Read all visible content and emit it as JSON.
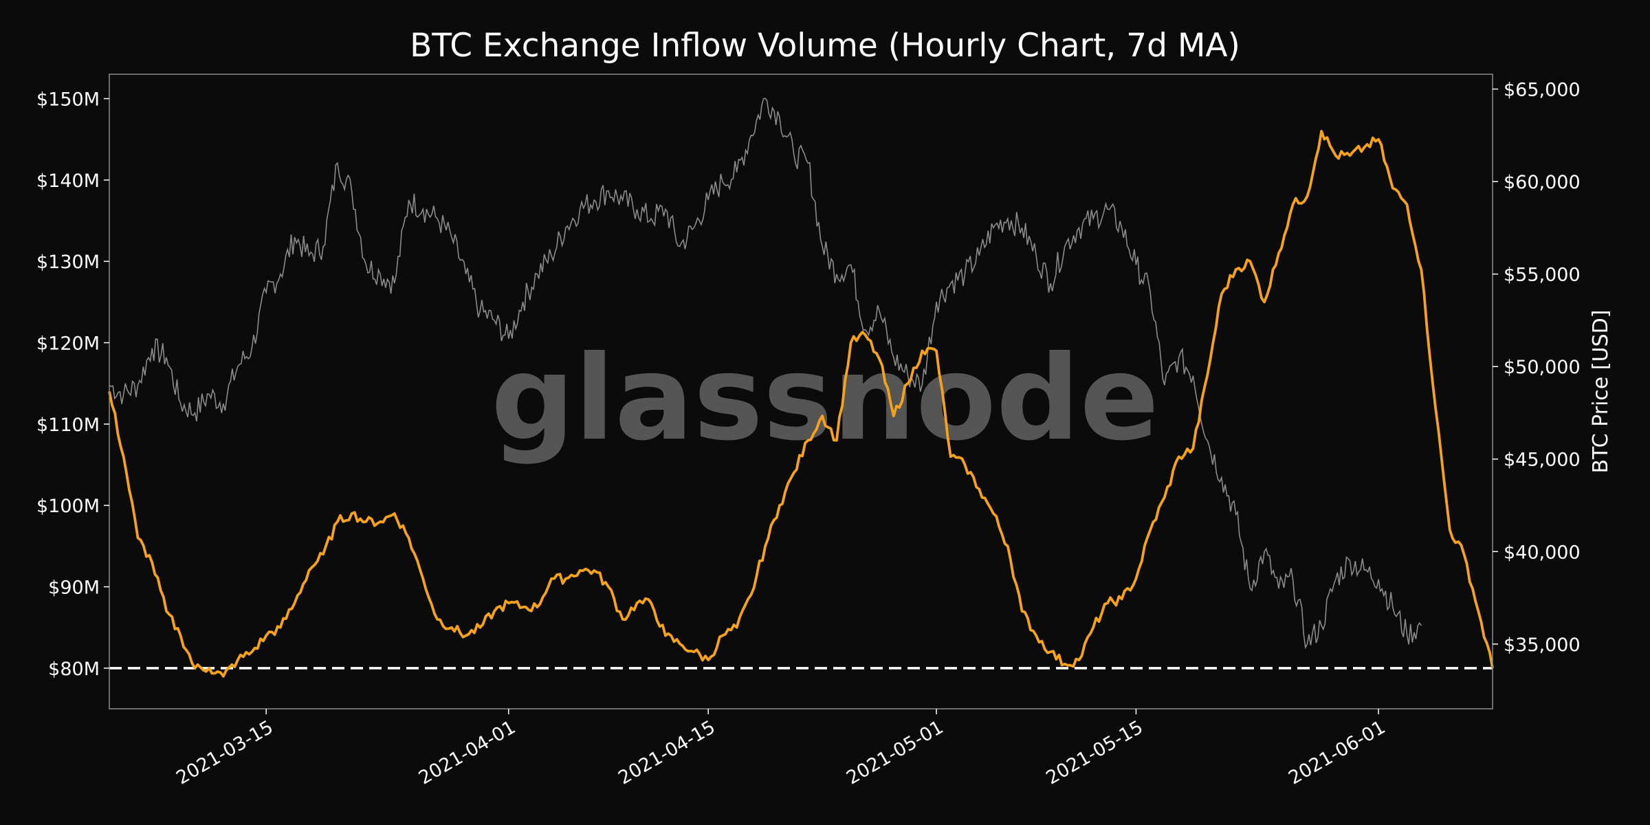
{
  "chart_data": {
    "type": "line",
    "title": "BTC Exchange Inflow Volume (Hourly Chart, 7d MA)",
    "watermark": "glassnode",
    "xlabel": "",
    "ylabel": "",
    "y2label": "BTC Price [USD]",
    "x_range": [
      "2021-03-04",
      "2021-06-09"
    ],
    "ylim": [
      75,
      153
    ],
    "y2lim": [
      31500,
      65800
    ],
    "grid": false,
    "x_ticks": [
      "2021-03-15",
      "2021-04-01",
      "2021-04-15",
      "2021-05-01",
      "2021-05-15",
      "2021-06-01"
    ],
    "y_ticks": [
      {
        "value": 80,
        "label": "$80M"
      },
      {
        "value": 90,
        "label": "$90M"
      },
      {
        "value": 100,
        "label": "$100M"
      },
      {
        "value": 110,
        "label": "$110M"
      },
      {
        "value": 120,
        "label": "$120M"
      },
      {
        "value": 130,
        "label": "$130M"
      },
      {
        "value": 140,
        "label": "$140M"
      },
      {
        "value": 150,
        "label": "$150M"
      }
    ],
    "y2_ticks": [
      {
        "value": 35000,
        "label": "$35,000"
      },
      {
        "value": 40000,
        "label": "$40,000"
      },
      {
        "value": 45000,
        "label": "$45,000"
      },
      {
        "value": 50000,
        "label": "$50,000"
      },
      {
        "value": 55000,
        "label": "$55,000"
      },
      {
        "value": 60000,
        "label": "$60,000"
      },
      {
        "value": 65000,
        "label": "$65,000"
      }
    ],
    "threshold": {
      "value": 80,
      "style": "dashed",
      "color": "#ffffff"
    },
    "colors": {
      "inflow": "#f7a21b",
      "price": "#8a8a8a",
      "background": "#0b0b0b",
      "frame": "#8c8c8c"
    },
    "series": [
      {
        "key": "inflow",
        "axis": "left",
        "points": [
          [
            "2021-03-04",
            114
          ],
          [
            "2021-03-05",
            106
          ],
          [
            "2021-03-06",
            96
          ],
          [
            "2021-03-07",
            93
          ],
          [
            "2021-03-08",
            87
          ],
          [
            "2021-03-09",
            84
          ],
          [
            "2021-03-10",
            80
          ],
          [
            "2021-03-11",
            80
          ],
          [
            "2021-03-12",
            79
          ],
          [
            "2021-03-13",
            81
          ],
          [
            "2021-03-14",
            82
          ],
          [
            "2021-03-15",
            84
          ],
          [
            "2021-03-16",
            85
          ],
          [
            "2021-03-17",
            88
          ],
          [
            "2021-03-18",
            92
          ],
          [
            "2021-03-19",
            94
          ],
          [
            "2021-03-20",
            98
          ],
          [
            "2021-03-21",
            99
          ],
          [
            "2021-03-22",
            98
          ],
          [
            "2021-03-23",
            98
          ],
          [
            "2021-03-24",
            99
          ],
          [
            "2021-03-25",
            96
          ],
          [
            "2021-03-26",
            91
          ],
          [
            "2021-03-27",
            86
          ],
          [
            "2021-03-28",
            85
          ],
          [
            "2021-03-29",
            84
          ],
          [
            "2021-03-30",
            85
          ],
          [
            "2021-03-31",
            87
          ],
          [
            "2021-04-01",
            88
          ],
          [
            "2021-04-02",
            87.5
          ],
          [
            "2021-04-03",
            87.5
          ],
          [
            "2021-04-04",
            91
          ],
          [
            "2021-04-05",
            91
          ],
          [
            "2021-04-06",
            92
          ],
          [
            "2021-04-07",
            92
          ],
          [
            "2021-04-08",
            90
          ],
          [
            "2021-04-09",
            86
          ],
          [
            "2021-04-10",
            88
          ],
          [
            "2021-04-11",
            88
          ],
          [
            "2021-04-12",
            84
          ],
          [
            "2021-04-13",
            83
          ],
          [
            "2021-04-14",
            82
          ],
          [
            "2021-04-15",
            81
          ],
          [
            "2021-04-16",
            84
          ],
          [
            "2021-04-17",
            85
          ],
          [
            "2021-04-18",
            89
          ],
          [
            "2021-04-19",
            95
          ],
          [
            "2021-04-20",
            100
          ],
          [
            "2021-04-21",
            104
          ],
          [
            "2021-04-22",
            108
          ],
          [
            "2021-04-23",
            111
          ],
          [
            "2021-04-24",
            108
          ],
          [
            "2021-04-25",
            120
          ],
          [
            "2021-04-26",
            121
          ],
          [
            "2021-04-27",
            118
          ],
          [
            "2021-04-28",
            111
          ],
          [
            "2021-04-29",
            115
          ],
          [
            "2021-04-30",
            119
          ],
          [
            "2021-05-01",
            119
          ],
          [
            "2021-05-02",
            106
          ],
          [
            "2021-05-03",
            105
          ],
          [
            "2021-05-04",
            102
          ],
          [
            "2021-05-05",
            99
          ],
          [
            "2021-05-06",
            95
          ],
          [
            "2021-05-07",
            87
          ],
          [
            "2021-05-08",
            84
          ],
          [
            "2021-05-09",
            82
          ],
          [
            "2021-05-10",
            80.5
          ],
          [
            "2021-05-11",
            81
          ],
          [
            "2021-05-12",
            85
          ],
          [
            "2021-05-13",
            88
          ],
          [
            "2021-05-14",
            88.5
          ],
          [
            "2021-05-15",
            91
          ],
          [
            "2021-05-16",
            97
          ],
          [
            "2021-05-17",
            101
          ],
          [
            "2021-05-18",
            106
          ],
          [
            "2021-05-19",
            107
          ],
          [
            "2021-05-20",
            116
          ],
          [
            "2021-05-21",
            126
          ],
          [
            "2021-05-22",
            129
          ],
          [
            "2021-05-23",
            130
          ],
          [
            "2021-05-24",
            125
          ],
          [
            "2021-05-25",
            131
          ],
          [
            "2021-05-26",
            137
          ],
          [
            "2021-05-27",
            138
          ],
          [
            "2021-05-28",
            146
          ],
          [
            "2021-05-29",
            143
          ],
          [
            "2021-05-30",
            143
          ],
          [
            "2021-05-31",
            144
          ],
          [
            "2021-06-01",
            145
          ],
          [
            "2021-06-02",
            139
          ],
          [
            "2021-06-03",
            137
          ],
          [
            "2021-06-04",
            129
          ],
          [
            "2021-06-05",
            112
          ],
          [
            "2021-06-06",
            97
          ],
          [
            "2021-06-07",
            94
          ],
          [
            "2021-06-08",
            87
          ],
          [
            "2021-06-09",
            80
          ]
        ]
      },
      {
        "key": "price",
        "axis": "right",
        "points": [
          [
            "2021-03-04",
            49000
          ],
          [
            "2021-03-05",
            48500
          ],
          [
            "2021-03-06",
            49000
          ],
          [
            "2021-03-07",
            51000
          ],
          [
            "2021-03-08",
            50500
          ],
          [
            "2021-03-09",
            48000
          ],
          [
            "2021-03-10",
            47500
          ],
          [
            "2021-03-11",
            48500
          ],
          [
            "2021-03-12",
            48000
          ],
          [
            "2021-03-13",
            50000
          ],
          [
            "2021-03-14",
            51000
          ],
          [
            "2021-03-15",
            54000
          ],
          [
            "2021-03-16",
            55000
          ],
          [
            "2021-03-17",
            57000
          ],
          [
            "2021-03-18",
            56000
          ],
          [
            "2021-03-19",
            56500
          ],
          [
            "2021-03-20",
            61000
          ],
          [
            "2021-03-21",
            59500
          ],
          [
            "2021-03-22",
            55500
          ],
          [
            "2021-03-23",
            55000
          ],
          [
            "2021-03-24",
            54500
          ],
          [
            "2021-03-25",
            59000
          ],
          [
            "2021-03-26",
            58500
          ],
          [
            "2021-03-27",
            58000
          ],
          [
            "2021-03-28",
            57000
          ],
          [
            "2021-03-29",
            55000
          ],
          [
            "2021-03-30",
            53000
          ],
          [
            "2021-03-31",
            52500
          ],
          [
            "2021-04-01",
            51500
          ],
          [
            "2021-04-02",
            53500
          ],
          [
            "2021-04-03",
            55000
          ],
          [
            "2021-04-04",
            56000
          ],
          [
            "2021-04-05",
            57500
          ],
          [
            "2021-04-06",
            58500
          ],
          [
            "2021-04-07",
            59000
          ],
          [
            "2021-04-08",
            59500
          ],
          [
            "2021-04-09",
            59000
          ],
          [
            "2021-04-10",
            58500
          ],
          [
            "2021-04-11",
            58000
          ],
          [
            "2021-04-12",
            58500
          ],
          [
            "2021-04-13",
            56500
          ],
          [
            "2021-04-14",
            57500
          ],
          [
            "2021-04-15",
            59000
          ],
          [
            "2021-04-16",
            60000
          ],
          [
            "2021-04-17",
            60500
          ],
          [
            "2021-04-18",
            62500
          ],
          [
            "2021-04-19",
            64500
          ],
          [
            "2021-04-20",
            63500
          ],
          [
            "2021-04-21",
            61500
          ],
          [
            "2021-04-22",
            61000
          ],
          [
            "2021-04-23",
            56500
          ],
          [
            "2021-04-24",
            55000
          ],
          [
            "2021-04-25",
            55500
          ],
          [
            "2021-04-26",
            52000
          ],
          [
            "2021-04-27",
            53000
          ],
          [
            "2021-04-28",
            50500
          ],
          [
            "2021-04-29",
            49500
          ],
          [
            "2021-04-30",
            49000
          ],
          [
            "2021-05-01",
            53500
          ],
          [
            "2021-05-02",
            54500
          ],
          [
            "2021-05-03",
            55000
          ],
          [
            "2021-05-04",
            56000
          ],
          [
            "2021-05-05",
            57500
          ],
          [
            "2021-05-06",
            58000
          ],
          [
            "2021-05-07",
            57500
          ],
          [
            "2021-05-08",
            56000
          ],
          [
            "2021-05-09",
            54500
          ],
          [
            "2021-05-10",
            56500
          ],
          [
            "2021-05-11",
            57500
          ],
          [
            "2021-05-12",
            58000
          ],
          [
            "2021-05-13",
            58500
          ],
          [
            "2021-05-14",
            57500
          ],
          [
            "2021-05-15",
            55500
          ],
          [
            "2021-05-16",
            54000
          ],
          [
            "2021-05-17",
            49000
          ],
          [
            "2021-05-18",
            50500
          ],
          [
            "2021-05-19",
            49500
          ],
          [
            "2021-05-20",
            46000
          ],
          [
            "2021-05-21",
            44000
          ],
          [
            "2021-05-22",
            42000
          ],
          [
            "2021-05-23",
            38000
          ],
          [
            "2021-05-24",
            40000
          ],
          [
            "2021-05-25",
            38000
          ],
          [
            "2021-05-26",
            38500
          ],
          [
            "2021-05-27",
            35000
          ],
          [
            "2021-05-28",
            36000
          ],
          [
            "2021-05-29",
            38500
          ],
          [
            "2021-05-30",
            39500
          ],
          [
            "2021-05-31",
            39000
          ],
          [
            "2021-06-01",
            38500
          ],
          [
            "2021-06-02",
            37000
          ],
          [
            "2021-06-03",
            35500
          ],
          [
            "2021-06-04",
            36000
          ]
        ]
      }
    ]
  }
}
